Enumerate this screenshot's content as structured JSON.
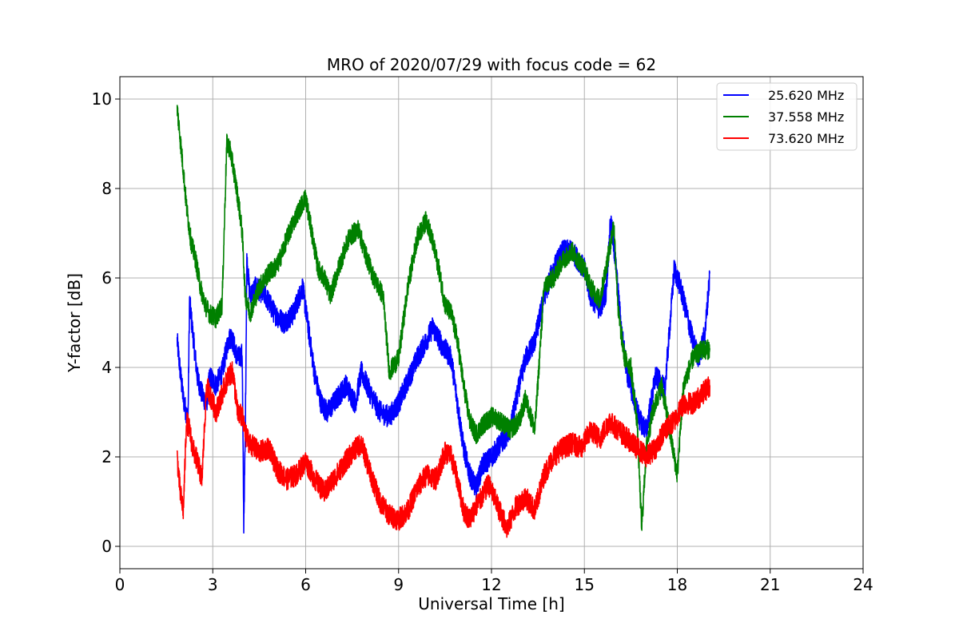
{
  "chart_data": {
    "type": "line",
    "title": "MRO of 2020/07/29 with focus code = 62",
    "xlabel": "Universal Time [h]",
    "ylabel": "Y-factor [dB]",
    "xlim": [
      0,
      24
    ],
    "ylim": [
      -0.5,
      10.5
    ],
    "xticks": [
      0,
      3,
      6,
      9,
      12,
      15,
      18,
      21,
      24
    ],
    "yticks": [
      0,
      2,
      4,
      6,
      8,
      10
    ],
    "grid": true,
    "legend_position": "top-right",
    "series": [
      {
        "name": "25.620 MHz",
        "color": "#0000ff",
        "noise": 0.25,
        "x": [
          1.85,
          1.95,
          2.05,
          2.2,
          2.25,
          2.35,
          2.5,
          2.65,
          2.8,
          2.9,
          3.1,
          3.3,
          3.5,
          3.6,
          3.8,
          3.95,
          4.0,
          4.05,
          4.1,
          4.2,
          4.4,
          4.7,
          5.0,
          5.3,
          5.6,
          5.9,
          6.1,
          6.3,
          6.5,
          6.7,
          7.0,
          7.3,
          7.6,
          7.8,
          8.1,
          8.4,
          8.7,
          9.0,
          9.3,
          9.6,
          9.9,
          10.1,
          10.4,
          10.7,
          10.9,
          11.1,
          11.3,
          11.5,
          11.7,
          12.0,
          12.3,
          12.6,
          12.9,
          13.1,
          13.4,
          13.7,
          14.0,
          14.3,
          14.6,
          14.8,
          15.0,
          15.2,
          15.5,
          15.7,
          15.85,
          16.0,
          16.2,
          16.4,
          16.6,
          16.8,
          17.0,
          17.3,
          17.6,
          17.9,
          18.1,
          18.3,
          18.5,
          18.7,
          18.9,
          19.05
        ],
        "y": [
          4.6,
          3.9,
          3.3,
          2.8,
          5.5,
          4.8,
          3.8,
          3.4,
          3.2,
          3.8,
          3.6,
          3.9,
          4.6,
          4.7,
          4.2,
          4.3,
          0.5,
          2.5,
          6.4,
          5.6,
          5.8,
          5.6,
          5.2,
          5.0,
          5.2,
          5.8,
          4.8,
          3.8,
          3.2,
          3.0,
          3.3,
          3.6,
          3.2,
          3.9,
          3.4,
          3.0,
          2.9,
          3.2,
          3.7,
          4.2,
          4.6,
          4.9,
          4.5,
          4.2,
          3.2,
          2.2,
          1.6,
          1.3,
          1.8,
          2.0,
          2.3,
          2.6,
          3.6,
          4.2,
          4.6,
          5.6,
          6.2,
          6.6,
          6.6,
          6.4,
          6.2,
          5.6,
          5.3,
          5.7,
          7.3,
          6.4,
          4.8,
          3.8,
          3.3,
          2.8,
          2.6,
          3.8,
          3.5,
          6.2,
          5.8,
          5.2,
          4.6,
          4.2,
          4.8,
          6.1
        ]
      },
      {
        "name": "37.558 MHz",
        "color": "#008000",
        "noise": 0.22,
        "x": [
          1.85,
          1.95,
          2.05,
          2.15,
          2.3,
          2.45,
          2.6,
          2.75,
          2.9,
          3.1,
          3.3,
          3.45,
          3.55,
          3.7,
          3.85,
          3.95,
          4.05,
          4.2,
          4.5,
          4.8,
          5.1,
          5.4,
          5.7,
          6.0,
          6.2,
          6.4,
          6.6,
          6.8,
          7.1,
          7.4,
          7.7,
          7.9,
          8.2,
          8.5,
          8.7,
          9.0,
          9.3,
          9.6,
          9.9,
          10.1,
          10.3,
          10.5,
          10.7,
          10.9,
          11.1,
          11.3,
          11.5,
          11.7,
          12.0,
          12.3,
          12.6,
          12.9,
          13.1,
          13.4,
          13.7,
          14.0,
          14.3,
          14.6,
          14.8,
          15.0,
          15.2,
          15.5,
          15.8,
          15.95,
          16.1,
          16.3,
          16.5,
          16.7,
          16.85,
          17.0,
          17.2,
          17.5,
          17.8,
          18.0,
          18.2,
          18.5,
          18.8,
          19.05
        ],
        "y": [
          9.8,
          9.1,
          8.4,
          7.6,
          6.8,
          6.4,
          5.8,
          5.4,
          5.2,
          5.1,
          5.4,
          9.0,
          8.9,
          8.3,
          7.6,
          7.0,
          5.6,
          5.2,
          5.8,
          6.1,
          6.3,
          6.9,
          7.4,
          7.8,
          7.0,
          6.2,
          6.0,
          5.6,
          6.3,
          6.9,
          7.1,
          6.6,
          6.0,
          5.6,
          3.9,
          4.2,
          5.8,
          6.9,
          7.3,
          6.8,
          6.2,
          5.4,
          5.2,
          4.6,
          3.6,
          2.8,
          2.5,
          2.7,
          2.9,
          2.8,
          2.6,
          2.8,
          3.3,
          2.6,
          5.8,
          6.0,
          6.4,
          6.6,
          6.4,
          6.2,
          5.8,
          5.5,
          6.6,
          7.2,
          5.2,
          4.2,
          4.0,
          2.8,
          0.4,
          2.2,
          3.0,
          3.6,
          2.4,
          1.6,
          3.6,
          4.2,
          4.4,
          4.4
        ]
      },
      {
        "name": "73.620 MHz",
        "color": "#ff0000",
        "noise": 0.25,
        "x": [
          1.85,
          1.95,
          2.05,
          2.15,
          2.25,
          2.35,
          2.5,
          2.65,
          2.8,
          2.95,
          3.1,
          3.3,
          3.5,
          3.65,
          3.8,
          3.95,
          4.05,
          4.2,
          4.5,
          4.8,
          5.1,
          5.4,
          5.7,
          6.0,
          6.3,
          6.6,
          6.9,
          7.2,
          7.5,
          7.8,
          8.1,
          8.4,
          8.7,
          9.0,
          9.3,
          9.6,
          9.9,
          10.2,
          10.5,
          10.7,
          10.9,
          11.1,
          11.3,
          11.5,
          11.7,
          11.9,
          12.2,
          12.5,
          12.8,
          13.1,
          13.4,
          13.7,
          14.0,
          14.3,
          14.6,
          14.9,
          15.2,
          15.5,
          15.8,
          16.1,
          16.4,
          16.7,
          17.0,
          17.3,
          17.6,
          17.9,
          18.2,
          18.5,
          18.8,
          19.05
        ],
        "y": [
          2.0,
          1.2,
          0.8,
          2.8,
          2.6,
          2.2,
          1.9,
          1.5,
          3.6,
          3.3,
          3.0,
          3.4,
          3.8,
          3.9,
          3.0,
          2.9,
          2.5,
          2.3,
          2.1,
          2.2,
          1.7,
          1.5,
          1.6,
          1.9,
          1.5,
          1.2,
          1.5,
          1.8,
          2.1,
          2.3,
          1.6,
          1.0,
          0.7,
          0.6,
          0.8,
          1.3,
          1.6,
          1.5,
          2.1,
          2.0,
          1.5,
          0.8,
          0.6,
          0.9,
          1.1,
          1.4,
          0.9,
          0.4,
          0.9,
          1.1,
          0.8,
          1.6,
          2.0,
          2.2,
          2.3,
          2.2,
          2.6,
          2.4,
          2.8,
          2.6,
          2.4,
          2.2,
          2.0,
          2.2,
          2.6,
          2.8,
          3.2,
          3.2,
          3.4,
          3.6
        ]
      }
    ]
  }
}
